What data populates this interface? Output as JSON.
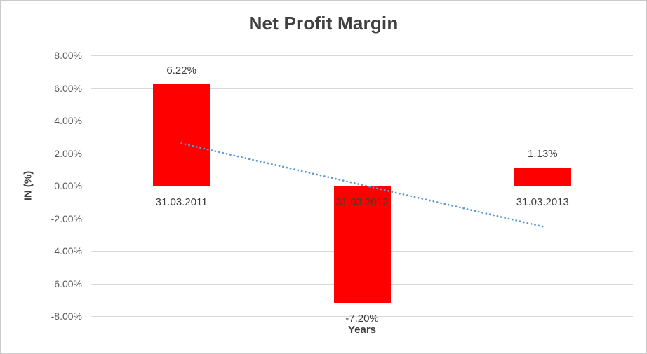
{
  "chart_data": {
    "type": "bar",
    "title": "Net Profit Margin",
    "categories": [
      "31.03.2011",
      "31.03.2012",
      "31.03.2013"
    ],
    "values": [
      6.22,
      -7.2,
      1.13
    ],
    "data_labels": [
      "6.22%",
      "-7.20%",
      "1.13%"
    ],
    "xlabel": "Years",
    "ylabel": "IN (%)",
    "ylim": [
      -8,
      8
    ],
    "ytick_step": 2,
    "ytick_labels": [
      "8.00%",
      "6.00%",
      "4.00%",
      "2.00%",
      "0.00%",
      "-2.00%",
      "-4.00%",
      "-6.00%",
      "-8.00%"
    ],
    "grid": true,
    "legend_position": "none",
    "bar_color": "#ff0000",
    "trendline": {
      "type": "linear",
      "style": "dotted",
      "color": "#5b9bd5",
      "start_value": 2.6,
      "end_value": -2.5
    }
  },
  "colors": {
    "title_text": "#404040",
    "axis_text": "#595959",
    "label_text": "#3d3d3d",
    "gridline": "#d9d9d9",
    "chart_border": "#cbcbcb",
    "background": "#ffffff"
  }
}
